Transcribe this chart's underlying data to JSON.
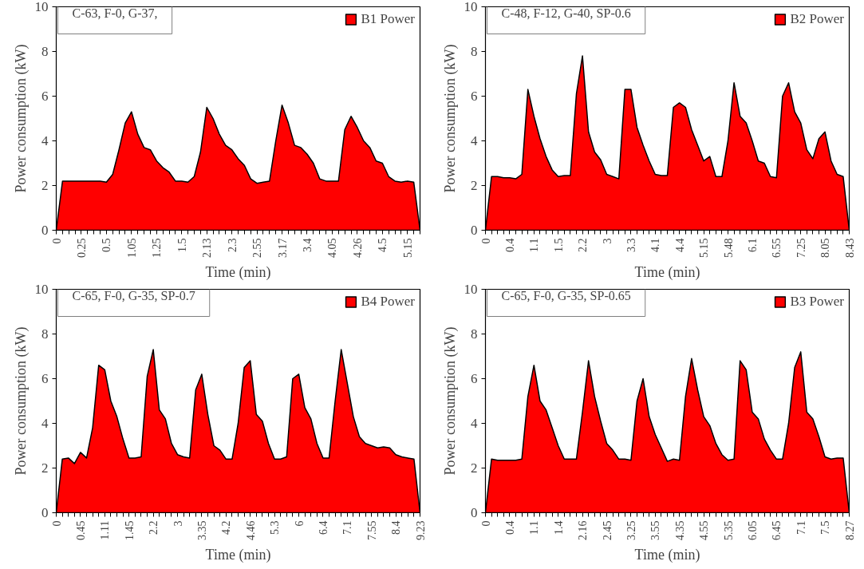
{
  "chart_data": [
    {
      "type": "area",
      "xlabel": "Time (min)",
      "ylabel": "Power consumption (kW)",
      "ylim": [
        0,
        10
      ],
      "yticks": [
        0,
        2,
        4,
        6,
        8,
        10
      ],
      "grid": false,
      "legend": "top right",
      "annotations": [
        "C-63, F-0, G-37,"
      ],
      "categories": [
        "0",
        null,
        null,
        null,
        "0.25",
        null,
        null,
        null,
        "0.5",
        null,
        null,
        null,
        "1.05",
        null,
        null,
        null,
        "1.25",
        null,
        null,
        null,
        "1.5",
        null,
        null,
        null,
        "2.13",
        null,
        null,
        null,
        "2.3",
        null,
        null,
        null,
        "2.55",
        null,
        null,
        null,
        "3.17",
        null,
        null,
        null,
        "3.4",
        null,
        null,
        null,
        "4.05",
        null,
        null,
        null,
        "4.26",
        null,
        null,
        null,
        "4.5",
        null,
        null,
        null,
        "5.15",
        null,
        null
      ],
      "series": [
        {
          "name": "B1 Power",
          "color": "#ff0000",
          "values": [
            0,
            2.2,
            2.2,
            2.2,
            2.2,
            2.2,
            2.2,
            2.2,
            2.15,
            2.5,
            3.6,
            4.8,
            5.3,
            4.3,
            3.7,
            3.6,
            3.1,
            2.8,
            2.6,
            2.2,
            2.2,
            2.15,
            2.4,
            3.5,
            5.5,
            5.0,
            4.3,
            3.8,
            3.6,
            3.2,
            2.9,
            2.3,
            2.1,
            2.15,
            2.2,
            4.0,
            5.6,
            4.8,
            3.8,
            3.7,
            3.4,
            3.0,
            2.3,
            2.2,
            2.2,
            2.2,
            4.5,
            5.1,
            4.6,
            4.0,
            3.7,
            3.1,
            3.0,
            2.4,
            2.2,
            2.15,
            2.2,
            2.15,
            0
          ]
        }
      ]
    },
    {
      "type": "area",
      "xlabel": "Time (min)",
      "ylabel": "Power consumption (kW)",
      "ylim": [
        0,
        10
      ],
      "yticks": [
        0,
        2,
        4,
        6,
        8,
        10
      ],
      "grid": false,
      "legend": "top right",
      "annotations": [
        "C-48, F-12, G-40, SP-0.6"
      ],
      "categories": [
        "0",
        null,
        null,
        null,
        "0.4",
        null,
        null,
        null,
        "1.1",
        null,
        null,
        null,
        "1.5",
        null,
        null,
        null,
        "2.2",
        null,
        null,
        null,
        "3",
        null,
        null,
        null,
        "3.3",
        null,
        null,
        null,
        "4.1",
        null,
        null,
        null,
        "4.4",
        null,
        null,
        null,
        "5.15",
        null,
        null,
        null,
        "5.48",
        null,
        null,
        null,
        "6.1",
        null,
        null,
        null,
        "6.55",
        null,
        null,
        null,
        "7.25",
        null,
        null,
        null,
        "8.05",
        null,
        null,
        null,
        "8.43"
      ],
      "series": [
        {
          "name": "B2 Power",
          "color": "#ff0000",
          "values": [
            0,
            2.4,
            2.4,
            2.35,
            2.35,
            2.3,
            2.5,
            6.3,
            5.1,
            4.1,
            3.3,
            2.7,
            2.4,
            2.45,
            2.45,
            6.1,
            7.8,
            4.4,
            3.5,
            3.15,
            2.5,
            2.4,
            2.3,
            6.3,
            6.3,
            4.6,
            3.8,
            3.1,
            2.5,
            2.45,
            2.45,
            5.5,
            5.7,
            5.5,
            4.5,
            3.8,
            3.1,
            3.3,
            2.4,
            2.4,
            4.0,
            6.6,
            5.1,
            4.8,
            4.0,
            3.1,
            3.0,
            2.4,
            2.35,
            6.0,
            6.6,
            5.3,
            4.8,
            3.6,
            3.2,
            4.1,
            4.4,
            3.1,
            2.5,
            2.4,
            0
          ]
        }
      ]
    },
    {
      "type": "area",
      "xlabel": "Time (min)",
      "ylabel": "Power consumption (kW)",
      "ylim": [
        0,
        10
      ],
      "yticks": [
        0,
        2,
        4,
        6,
        8,
        10
      ],
      "grid": false,
      "legend": "top right",
      "annotations": [
        "C-65, F-0, G-35, SP-0.7"
      ],
      "categories": [
        "0",
        null,
        null,
        null,
        "0.45",
        null,
        null,
        null,
        "1.11",
        null,
        null,
        null,
        "1.45",
        null,
        null,
        null,
        "2.2",
        null,
        null,
        null,
        "3",
        null,
        null,
        null,
        "3.35",
        null,
        null,
        null,
        "4.2",
        null,
        null,
        null,
        "4.46",
        null,
        null,
        null,
        "5.3",
        null,
        null,
        null,
        "6",
        null,
        null,
        null,
        "6.4",
        null,
        null,
        null,
        "7.1",
        null,
        null,
        null,
        "7.55",
        null,
        null,
        null,
        "8.4",
        null,
        null,
        null,
        "9.23"
      ],
      "series": [
        {
          "name": "B4 Power",
          "color": "#ff0000",
          "values": [
            0,
            2.4,
            2.45,
            2.2,
            2.7,
            2.45,
            3.8,
            6.6,
            6.4,
            5.0,
            4.3,
            3.3,
            2.45,
            2.45,
            2.5,
            6.1,
            7.3,
            4.6,
            4.2,
            3.1,
            2.6,
            2.5,
            2.45,
            5.5,
            6.2,
            4.4,
            3.0,
            2.8,
            2.4,
            2.4,
            4.0,
            6.5,
            6.8,
            4.4,
            4.1,
            3.1,
            2.4,
            2.4,
            2.5,
            6.0,
            6.2,
            4.7,
            4.2,
            3.1,
            2.45,
            2.45,
            5.0,
            7.3,
            5.8,
            4.3,
            3.4,
            3.1,
            3.0,
            2.9,
            2.95,
            2.9,
            2.6,
            2.5,
            2.45,
            2.4,
            0
          ]
        }
      ]
    },
    {
      "type": "area",
      "xlabel": "Time (min)",
      "ylabel": "Power consumption (kW)",
      "ylim": [
        0,
        10
      ],
      "yticks": [
        0,
        2,
        4,
        6,
        8,
        10
      ],
      "grid": false,
      "legend": "top right",
      "annotations": [
        "C-65, F-0, G-35, SP-0.65"
      ],
      "categories": [
        "0",
        null,
        null,
        null,
        "0.4",
        null,
        null,
        null,
        "1.1",
        null,
        null,
        null,
        "1.4",
        null,
        null,
        null,
        "2.16",
        null,
        null,
        null,
        "2.45",
        null,
        null,
        null,
        "3.25",
        null,
        null,
        null,
        "3.55",
        null,
        null,
        null,
        "4.35",
        null,
        null,
        null,
        "4.55",
        null,
        null,
        null,
        "5.35",
        null,
        null,
        null,
        "6.05",
        null,
        null,
        null,
        "6.45",
        null,
        null,
        null,
        "7.1",
        null,
        null,
        null,
        "7.5",
        null,
        null,
        null,
        "8.27"
      ],
      "series": [
        {
          "name": "B3 Power",
          "color": "#ff0000",
          "values": [
            0,
            2.4,
            2.35,
            2.35,
            2.35,
            2.35,
            2.4,
            5.2,
            6.6,
            5.0,
            4.6,
            3.8,
            3.0,
            2.4,
            2.4,
            2.4,
            4.5,
            6.8,
            5.2,
            4.1,
            3.1,
            2.8,
            2.4,
            2.4,
            2.35,
            5.0,
            6.0,
            4.3,
            3.5,
            2.9,
            2.3,
            2.4,
            2.35,
            5.2,
            6.9,
            5.5,
            4.3,
            3.9,
            3.1,
            2.6,
            2.35,
            2.4,
            6.8,
            6.4,
            4.5,
            4.2,
            3.3,
            2.8,
            2.4,
            2.4,
            4.0,
            6.5,
            7.2,
            4.5,
            4.2,
            3.4,
            2.5,
            2.4,
            2.45,
            2.45,
            0
          ]
        }
      ]
    }
  ]
}
